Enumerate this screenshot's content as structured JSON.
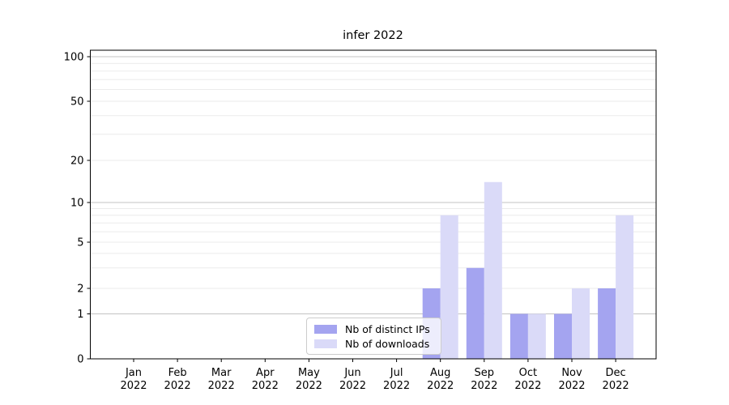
{
  "title": "infer 2022",
  "legend": {
    "items": [
      {
        "label": "Nb of distinct IPs",
        "color": "#a4a4f0"
      },
      {
        "label": "Nb of downloads",
        "color": "#dadaf8"
      }
    ]
  },
  "chart_data": {
    "type": "bar",
    "title": "infer 2022",
    "categories": [
      "Jan",
      "Feb",
      "Mar",
      "Apr",
      "May",
      "Jun",
      "Jul",
      "Aug",
      "Sep",
      "Oct",
      "Nov",
      "Dec"
    ],
    "category_year": "2022",
    "series": [
      {
        "name": "Nb of distinct IPs",
        "color": "#a4a4f0",
        "values": [
          0,
          0,
          0,
          0,
          0,
          0,
          0,
          2,
          3,
          1,
          1,
          2
        ]
      },
      {
        "name": "Nb of downloads",
        "color": "#dadaf8",
        "values": [
          0,
          0,
          0,
          0,
          0,
          0,
          0,
          8,
          14,
          1,
          2,
          8
        ]
      }
    ],
    "yscale": "symlog",
    "yticks": [
      0,
      1,
      2,
      5,
      10,
      20,
      50,
      100
    ],
    "ylim": [
      0,
      110
    ],
    "grid": true,
    "legend_position": "lower center",
    "colors": {
      "grid_minor": "#ebebeb",
      "grid_decade": "#c3c3c3",
      "axis": "#000000"
    }
  }
}
